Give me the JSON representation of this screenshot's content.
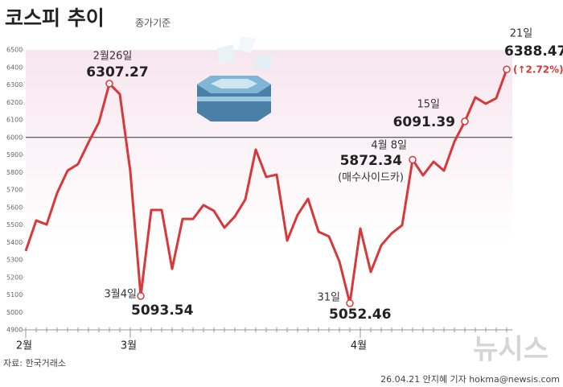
{
  "chart_data": {
    "type": "line",
    "title": "코스피 추이",
    "subtitle": "종가기준",
    "categories": [
      "2월",
      null,
      null,
      null,
      null,
      null,
      null,
      null,
      null,
      null,
      "3월",
      null,
      null,
      null,
      null,
      null,
      null,
      null,
      null,
      null,
      null,
      null,
      null,
      null,
      null,
      null,
      null,
      null,
      null,
      null,
      null,
      null,
      "4월",
      null,
      null,
      null,
      null,
      null,
      null,
      null,
      null,
      null,
      null,
      null,
      null,
      null,
      null
    ],
    "series": [
      {
        "name": "코스피",
        "color": "#d9383a",
        "values": [
          5351,
          5525,
          5502,
          5682,
          5810,
          5847,
          5971,
          6086,
          6307.27,
          6247,
          5806,
          5093.54,
          5585,
          5585,
          5249,
          5534,
          5534,
          5613,
          5580,
          5484,
          5548,
          5645,
          5930,
          5774,
          5787,
          5410,
          5557,
          5649,
          5461,
          5434,
          5291,
          5052.46,
          5479,
          5231,
          5383,
          5452,
          5498,
          5872.34,
          5783,
          5861,
          5810,
          5976,
          6091.39,
          6229,
          6192,
          6224,
          6388.47
        ]
      }
    ],
    "ylim": [
      4900,
      6500
    ],
    "yticks": [
      4900,
      5000,
      5100,
      5200,
      5300,
      5400,
      5500,
      5600,
      5700,
      5800,
      5900,
      6000,
      6100,
      6200,
      6300,
      6400,
      6500
    ],
    "reference_line": 6000,
    "annotations": [
      "2월26일",
      "3월4일",
      "31일",
      "4월 8일",
      "(매수사이드카)",
      "15일",
      "21일",
      "(↑2.72%)"
    ],
    "source": "자료: 한국거래소",
    "credit": "26.04.21 안지혜 기자 hokma@newsis.com",
    "watermark": "뉴시스"
  }
}
